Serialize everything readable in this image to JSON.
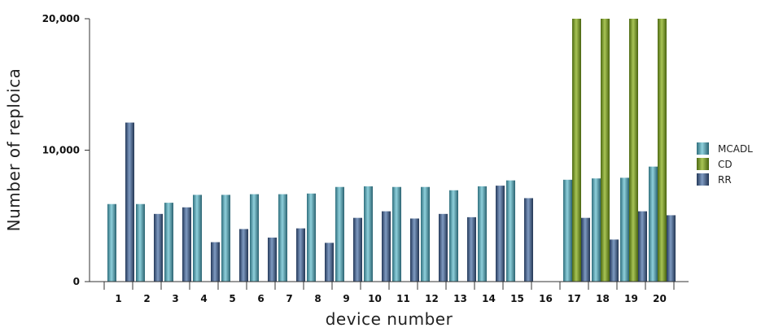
{
  "chart_data": {
    "type": "bar",
    "xlabel": "device number",
    "ylabel": "Number of reploica",
    "ylim": [
      0,
      20000
    ],
    "yticks": [
      "0",
      "10,000",
      "20,000"
    ],
    "categories": [
      "1",
      "2",
      "3",
      "4",
      "5",
      "6",
      "7",
      "8",
      "9",
      "10",
      "11",
      "12",
      "13",
      "14",
      "15",
      "16",
      "17",
      "18",
      "19",
      "20"
    ],
    "legend_position": "right",
    "grid": false,
    "series": [
      {
        "name": "MCADL",
        "color": "#4a93a2",
        "values": [
          5900,
          5900,
          6000,
          6600,
          6600,
          6650,
          6650,
          6700,
          7200,
          7250,
          7200,
          7200,
          6950,
          7250,
          7700,
          0,
          7750,
          7850,
          7900,
          8750
        ]
      },
      {
        "name": "CD",
        "color": "#6f8f2a",
        "values": [
          0,
          0,
          0,
          0,
          0,
          0,
          0,
          0,
          0,
          0,
          0,
          0,
          0,
          0,
          0,
          0,
          20000,
          20000,
          20000,
          20000
        ]
      },
      {
        "name": "RR",
        "color": "#3f5a80",
        "values": [
          12100,
          5150,
          5650,
          3000,
          4000,
          3350,
          4050,
          2950,
          4850,
          5350,
          4800,
          5150,
          4900,
          7300,
          6350,
          0,
          4850,
          3200,
          5350,
          5050
        ]
      }
    ]
  }
}
